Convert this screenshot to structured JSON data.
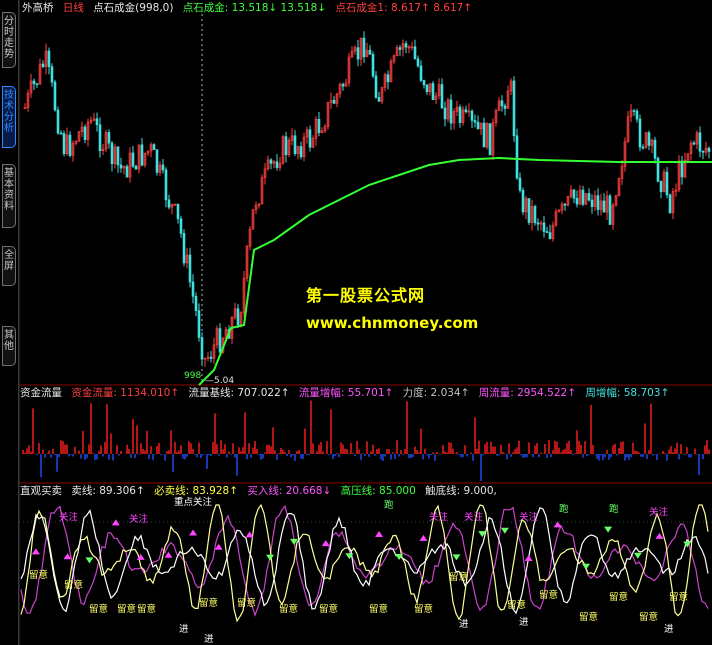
{
  "sidebar": {
    "tabs": [
      {
        "label": "分时走势",
        "active": false
      },
      {
        "label": "技术分析",
        "active": true
      },
      {
        "label": "基本资料",
        "active": false
      },
      {
        "label": "全屏",
        "active": false
      },
      {
        "label": "其他",
        "active": false
      }
    ]
  },
  "main_panel": {
    "items": [
      {
        "text": "外高桥",
        "color": "c-white"
      },
      {
        "text": "日线",
        "color": "c-red"
      },
      {
        "text": "点石成金(998,0)",
        "color": "c-white"
      },
      {
        "text": "点石成金: 13.518↓ 13.518↓",
        "color": "c-green"
      },
      {
        "text": "点石成金1: 8.617↑ 8.617↑",
        "color": "c-red"
      }
    ],
    "low_marker": "998",
    "low_price": "5.04",
    "watermark_cn": "第一股票公式网",
    "watermark_url": "www.chnmoney.com"
  },
  "fund_panel": {
    "title": "资金流量",
    "items": [
      {
        "text": "资金流量: 1134.010↑",
        "color": "c-red"
      },
      {
        "text": "流量基线: 707.022↑",
        "color": "c-white"
      },
      {
        "text": "流量增幅: 55.701↑",
        "color": "c-mag"
      },
      {
        "text": "力度: 2.034↑",
        "color": "c-gray"
      },
      {
        "text": "周流量: 2954.522↑",
        "color": "c-mag"
      },
      {
        "text": "周增幅: 58.703↑",
        "color": "c-cyan"
      }
    ]
  },
  "signal_panel": {
    "title": "直观买卖",
    "items": [
      {
        "text": "卖线: 89.306↑",
        "color": "c-white"
      },
      {
        "text": "必卖线: 83.928↑",
        "color": "c-yellow"
      },
      {
        "text": "买入线: 20.668↓",
        "color": "c-mag"
      },
      {
        "text": "高压线: 85.000",
        "color": "c-green"
      },
      {
        "text": "触底线: 9.000,",
        "color": "c-white"
      }
    ],
    "labels": {
      "attention": "关注",
      "watch": "留意",
      "enter": "进",
      "run": "跑",
      "key_attention": "重点关注"
    }
  },
  "colors": {
    "up": "#ff4040",
    "down": "#40e0e0",
    "ma": "#33ff33",
    "flow_up": "#ff2020",
    "flow_down": "#2050ff",
    "buy_line": "#cc44cc",
    "sell_line": "#ffff99",
    "grid": "#8b0000"
  }
}
